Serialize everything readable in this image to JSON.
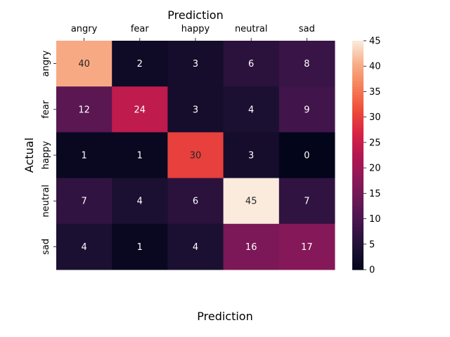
{
  "chart_data": {
    "type": "heatmap",
    "title": "Prediction",
    "xlabel": "Prediction",
    "ylabel": "Actual",
    "x_categories": [
      "angry",
      "fear",
      "happy",
      "neutral",
      "sad"
    ],
    "y_categories": [
      "angry",
      "fear",
      "happy",
      "neutral",
      "sad"
    ],
    "values": [
      [
        40,
        2,
        3,
        6,
        8
      ],
      [
        12,
        24,
        3,
        4,
        9
      ],
      [
        1,
        1,
        30,
        3,
        0
      ],
      [
        7,
        4,
        6,
        45,
        7
      ],
      [
        4,
        1,
        4,
        16,
        17
      ]
    ],
    "colorbar": {
      "min": 0,
      "max": 45,
      "ticks": [
        0,
        5,
        10,
        15,
        20,
        25,
        30,
        35,
        40,
        45
      ]
    },
    "colormap": "rocket",
    "annotations": true,
    "grid": false,
    "x_tick_position": "top"
  }
}
